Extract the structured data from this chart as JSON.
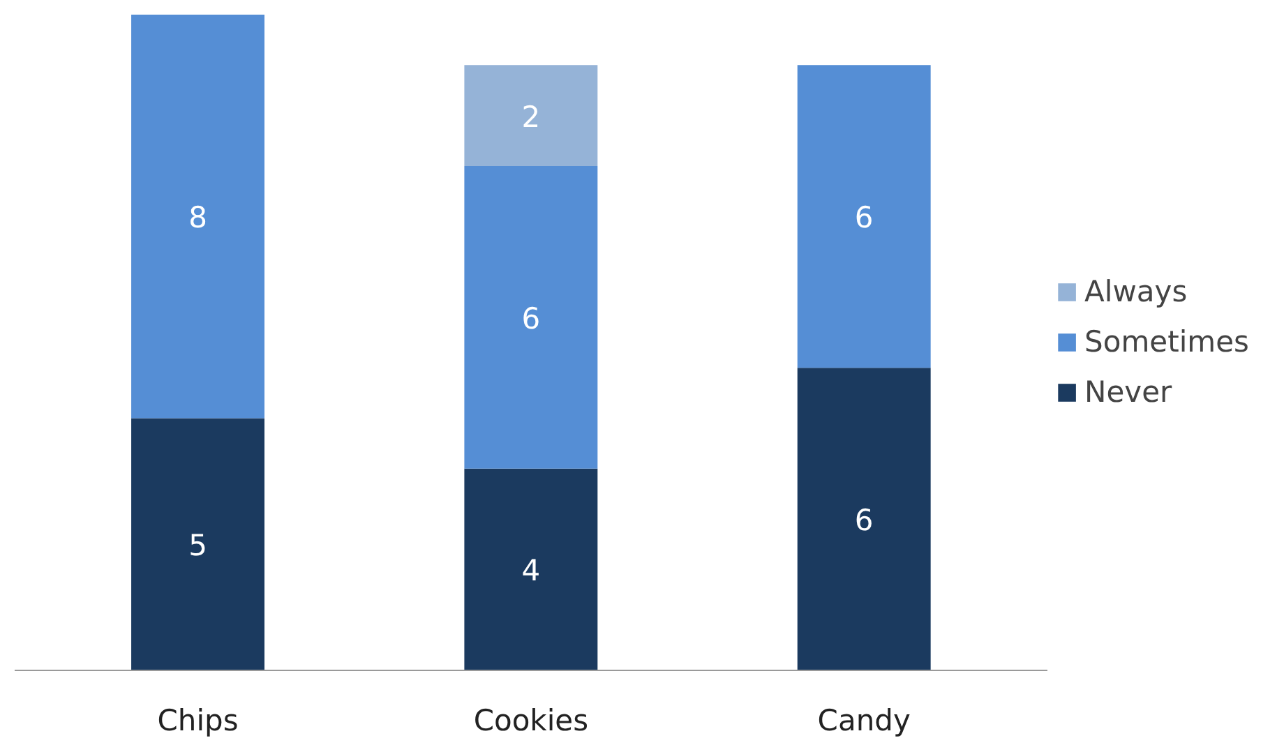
{
  "chart_data": {
    "type": "bar",
    "stacked": true,
    "tick_labels": "x",
    "data_labels": true,
    "categories": [
      "Chips",
      "Cookies",
      "Candy"
    ],
    "series": [
      {
        "name": "Never",
        "color": "#1b3a5f",
        "values": [
          5,
          4,
          6
        ]
      },
      {
        "name": "Sometimes",
        "color": "#558ed5",
        "values": [
          8,
          6,
          6
        ]
      },
      {
        "name": "Always",
        "color": "#95b3d7",
        "values": [
          null,
          2,
          null
        ]
      }
    ],
    "legend": "right",
    "grid": false
  }
}
